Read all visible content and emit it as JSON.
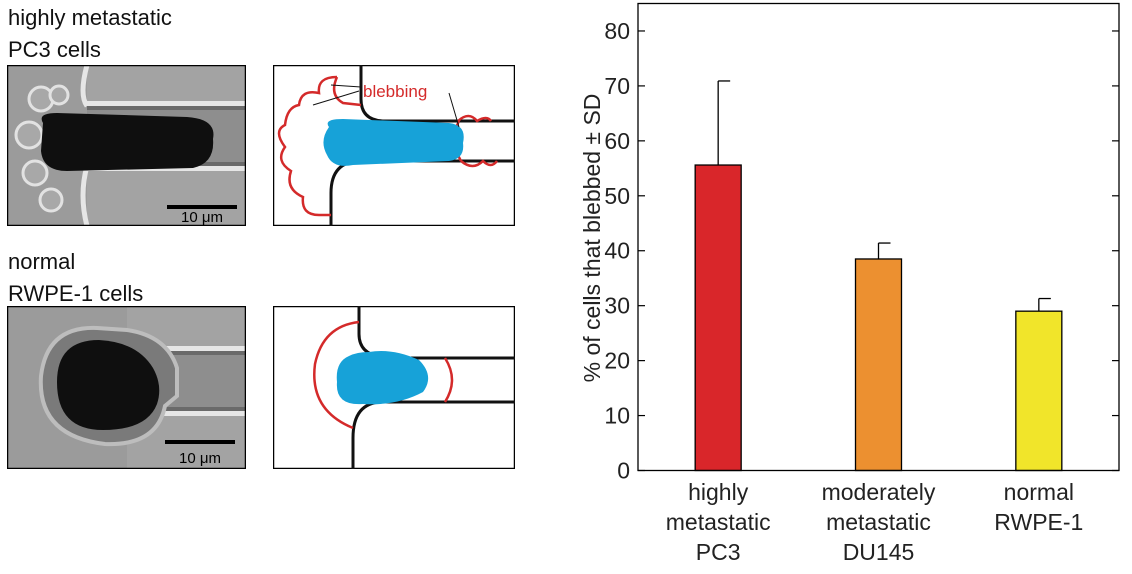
{
  "left": {
    "top_caption": [
      "highly metastatic",
      "PC3 cells"
    ],
    "bottom_caption": [
      "normal",
      "RWPE-1 cells"
    ],
    "scale_bar_label": "10 μm",
    "annotation": "blebbing",
    "colors": {
      "cell": "#17a2d8",
      "membrane": "#d42a2a",
      "wall": "#111111"
    }
  },
  "chart_data": {
    "type": "bar",
    "categories": [
      [
        "highly",
        "metastatic",
        "PC3"
      ],
      [
        "moderately",
        "metastatic",
        "DU145"
      ],
      [
        "normal",
        "RWPE-1"
      ]
    ],
    "values": [
      55.6,
      38.5,
      29.0
    ],
    "errors": [
      15.3,
      2.9,
      2.3
    ],
    "colors": [
      "#d9262a",
      "#ec9030",
      "#f1e52a"
    ],
    "ylabel": "% of cells that blebbed ± SD",
    "ylim": [
      0,
      85
    ],
    "yticks": [
      0,
      10,
      20,
      30,
      40,
      50,
      60,
      70,
      80
    ]
  }
}
